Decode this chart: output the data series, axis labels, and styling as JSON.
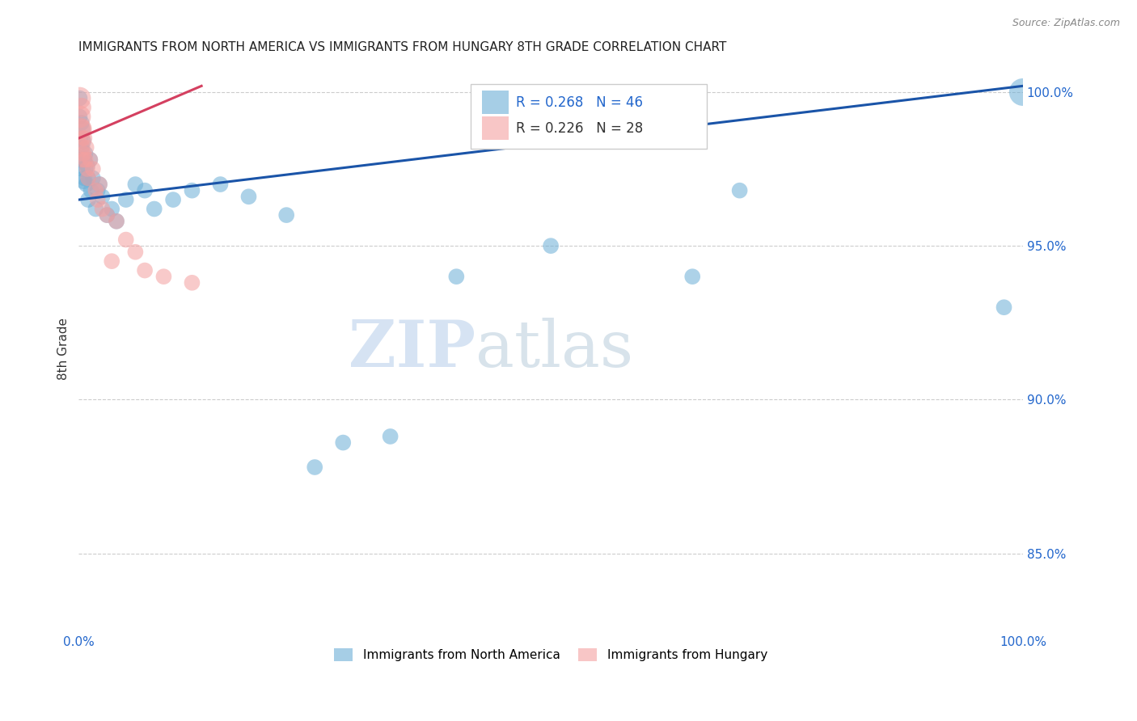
{
  "title": "IMMIGRANTS FROM NORTH AMERICA VS IMMIGRANTS FROM HUNGARY 8TH GRADE CORRELATION CHART",
  "source": "Source: ZipAtlas.com",
  "ylabel": "8th Grade",
  "legend_blue_label": "Immigrants from North America",
  "legend_pink_label": "Immigrants from Hungary",
  "r_blue": 0.268,
  "n_blue": 46,
  "r_pink": 0.226,
  "n_pink": 28,
  "blue_color": "#6baed6",
  "pink_color": "#f4a0a0",
  "trend_blue_color": "#1a54a8",
  "trend_pink_color": "#d44060",
  "xlim": [
    0.0,
    1.0
  ],
  "ylim": [
    0.825,
    1.008
  ],
  "right_yticks": [
    1.0,
    0.95,
    0.9,
    0.85
  ],
  "blue_trend_x": [
    0.0,
    1.0
  ],
  "blue_trend_y": [
    0.965,
    1.002
  ],
  "pink_trend_x": [
    0.0,
    0.13
  ],
  "pink_trend_y": [
    0.985,
    1.002
  ],
  "blue_x": [
    0.001,
    0.001,
    0.002,
    0.002,
    0.003,
    0.003,
    0.004,
    0.004,
    0.005,
    0.005,
    0.006,
    0.006,
    0.007,
    0.007,
    0.008,
    0.009,
    0.01,
    0.01,
    0.012,
    0.013,
    0.015,
    0.018,
    0.02,
    0.022,
    0.025,
    0.03,
    0.035,
    0.04,
    0.05,
    0.06,
    0.07,
    0.08,
    0.1,
    0.12,
    0.15,
    0.18,
    0.22,
    0.25,
    0.28,
    0.33,
    0.4,
    0.5,
    0.65,
    0.7,
    0.98,
    1.0
  ],
  "blue_y": [
    0.998,
    0.992,
    0.985,
    0.978,
    0.99,
    0.982,
    0.988,
    0.975,
    0.984,
    0.971,
    0.978,
    0.972,
    0.98,
    0.975,
    0.97,
    0.976,
    0.972,
    0.965,
    0.978,
    0.968,
    0.972,
    0.962,
    0.968,
    0.97,
    0.966,
    0.96,
    0.962,
    0.958,
    0.965,
    0.97,
    0.968,
    0.962,
    0.965,
    0.968,
    0.97,
    0.966,
    0.96,
    0.878,
    0.886,
    0.888,
    0.94,
    0.95,
    0.94,
    0.968,
    0.93,
    1.0
  ],
  "blue_sizes": [
    200,
    200,
    200,
    200,
    200,
    200,
    200,
    200,
    200,
    200,
    200,
    200,
    200,
    200,
    200,
    200,
    200,
    200,
    200,
    200,
    200,
    200,
    200,
    200,
    200,
    200,
    200,
    200,
    200,
    200,
    200,
    200,
    200,
    200,
    200,
    200,
    200,
    200,
    200,
    200,
    200,
    200,
    200,
    200,
    200,
    600
  ],
  "pink_x": [
    0.001,
    0.001,
    0.002,
    0.002,
    0.003,
    0.003,
    0.004,
    0.004,
    0.005,
    0.006,
    0.007,
    0.008,
    0.009,
    0.01,
    0.012,
    0.015,
    0.018,
    0.02,
    0.022,
    0.025,
    0.03,
    0.035,
    0.04,
    0.05,
    0.06,
    0.07,
    0.09,
    0.12
  ],
  "pink_y": [
    0.998,
    0.992,
    0.988,
    0.982,
    0.995,
    0.988,
    0.985,
    0.978,
    0.98,
    0.985,
    0.978,
    0.982,
    0.975,
    0.972,
    0.978,
    0.975,
    0.968,
    0.965,
    0.97,
    0.962,
    0.96,
    0.945,
    0.958,
    0.952,
    0.948,
    0.942,
    0.94,
    0.938
  ],
  "pink_sizes": [
    400,
    400,
    400,
    300,
    300,
    300,
    200,
    200,
    200,
    200,
    200,
    200,
    200,
    200,
    200,
    200,
    200,
    200,
    200,
    200,
    200,
    200,
    200,
    200,
    200,
    200,
    200,
    200
  ]
}
